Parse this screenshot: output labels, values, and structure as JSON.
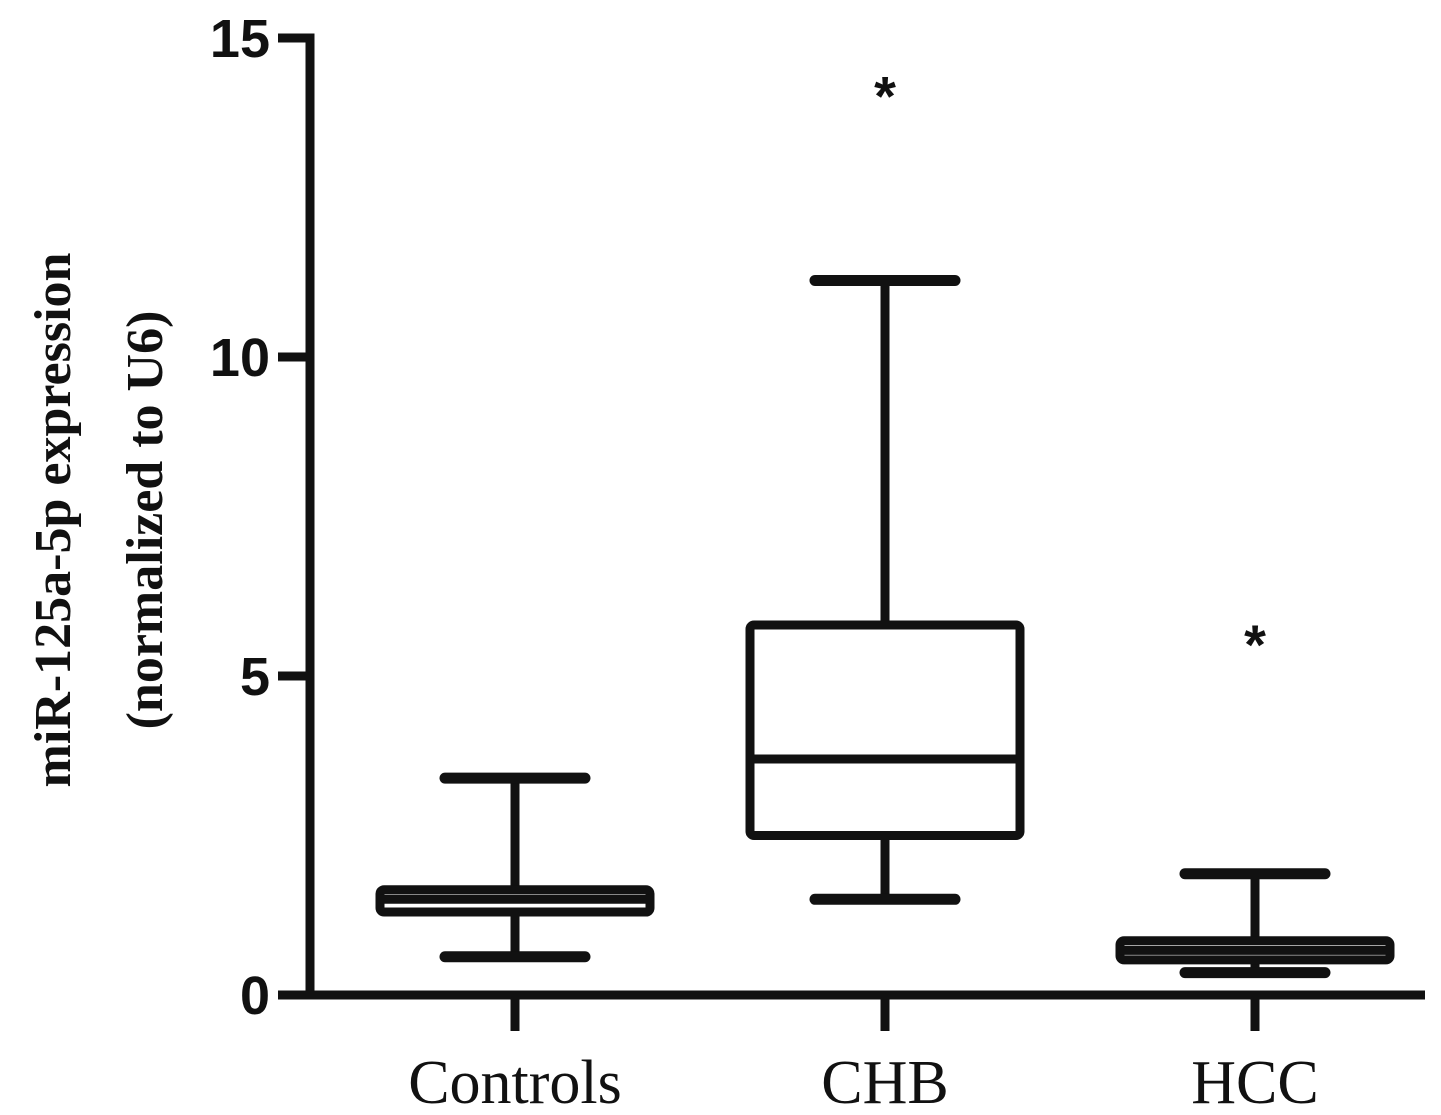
{
  "chart_data": {
    "type": "box",
    "title": "",
    "ylabel_line1": "miR-125a-5p expression",
    "ylabel_line2": "(normalized to U6)",
    "ylim": [
      0,
      15
    ],
    "yticks": [
      0,
      5,
      10,
      15
    ],
    "ytick_labels": [
      "0",
      "5",
      "10",
      "15"
    ],
    "categories": [
      "Controls",
      "CHB",
      "HCC"
    ],
    "boxes": [
      {
        "category": "Controls",
        "min": 0.6,
        "q1": 1.3,
        "median": 1.5,
        "q3": 1.65,
        "max": 3.4,
        "annotation": ""
      },
      {
        "category": "CHB",
        "min": 1.5,
        "q1": 2.5,
        "median": 3.7,
        "q3": 5.8,
        "max": 11.2,
        "annotation": "*"
      },
      {
        "category": "HCC",
        "min": 0.35,
        "q1": 0.55,
        "median": 0.7,
        "q3": 0.85,
        "max": 1.9,
        "annotation": "*"
      }
    ]
  }
}
